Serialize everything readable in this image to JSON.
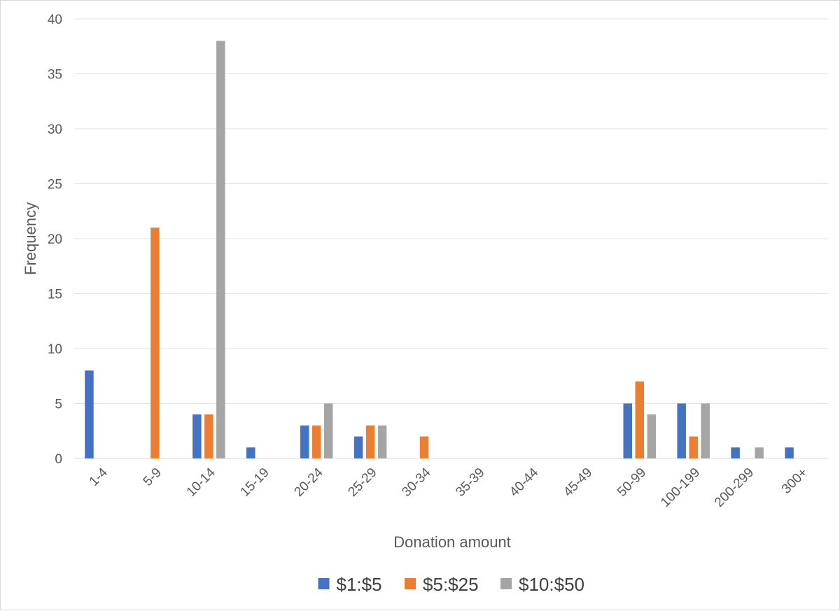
{
  "chart_data": {
    "type": "bar",
    "title": "",
    "xlabel": "Donation amount",
    "ylabel": "Frequency",
    "ylim": [
      0,
      40
    ],
    "yticks": [
      0,
      5,
      10,
      15,
      20,
      25,
      30,
      35,
      40
    ],
    "grid": true,
    "legend_position": "bottom",
    "categories": [
      "1-4",
      "5-9",
      "10-14",
      "15-19",
      "20-24",
      "25-29",
      "30-34",
      "35-39",
      "40-44",
      "45-49",
      "50-99",
      "100-199",
      "200-299",
      "300+"
    ],
    "series": [
      {
        "name": "$1:$5",
        "color": "#4472c4",
        "values": [
          8,
          0,
          4,
          1,
          3,
          2,
          0,
          0,
          0,
          0,
          5,
          5,
          1,
          1
        ]
      },
      {
        "name": "$5:$25",
        "color": "#ed7d31",
        "values": [
          0,
          21,
          4,
          0,
          3,
          3,
          2,
          0,
          0,
          0,
          7,
          2,
          0,
          0
        ]
      },
      {
        "name": "$10:$50",
        "color": "#a5a5a5",
        "values": [
          0,
          0,
          38,
          0,
          5,
          3,
          0,
          0,
          0,
          0,
          4,
          5,
          1,
          0
        ]
      }
    ]
  }
}
